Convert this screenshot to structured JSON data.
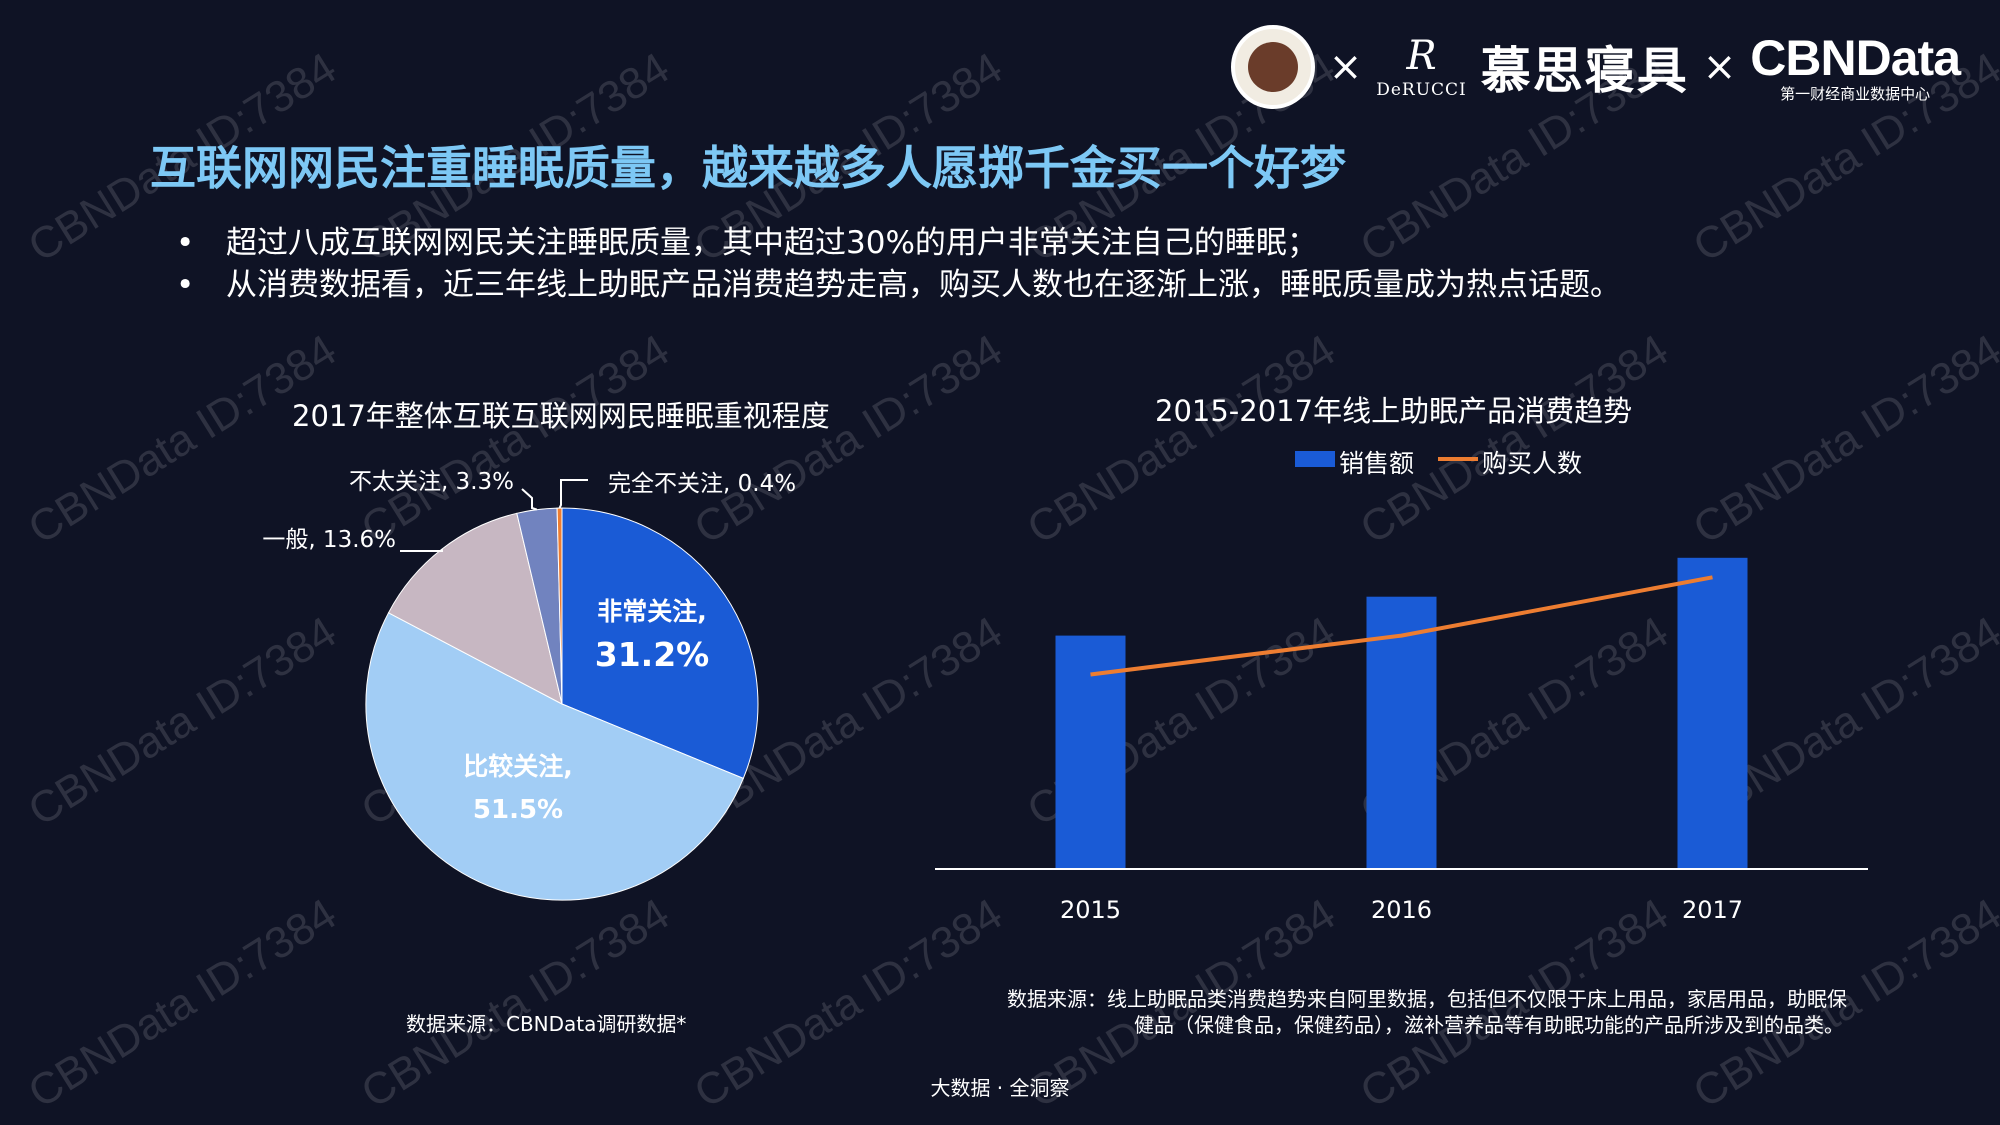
{
  "watermark_text": "CBNData ID:7384",
  "logos": {
    "separator": "×",
    "derucci_mark": "R",
    "derucci_name": "DeRUCCI",
    "brand_cn": "慕思寝具",
    "cbndata": "CBNData",
    "cbndata_sub": "第一财经商业数据中心"
  },
  "headline": "互联网网民注重睡眠质量，越来越多人愿掷千金买一个好梦",
  "bullets": [
    "超过八成互联网网民关注睡眠质量，其中超过30%的用户非常关注自己的睡眠；",
    "从消费数据看，近三年线上助眠产品消费趋势走高，购买人数也在逐渐上涨，睡眠质量成为热点话题。"
  ],
  "bullet_symbol": "•",
  "chart_data": [
    {
      "type": "pie",
      "title": "2017年整体互联互联网网民睡眠重视程度",
      "slices": [
        {
          "label": "非常关注",
          "value": 31.2,
          "display": "31.2%",
          "color": "#1a5bd6"
        },
        {
          "label": "比较关注",
          "value": 51.5,
          "display": "51.5%",
          "color": "#a2cdf5"
        },
        {
          "label": "一般",
          "value": 13.6,
          "display": "13.6%",
          "color": "#c7b7c2"
        },
        {
          "label": "不太关注",
          "value": 3.3,
          "display": "3.3%",
          "color": "#7183bf"
        },
        {
          "label": "完全不关注",
          "value": 0.4,
          "display": "0.4%",
          "color": "#ed7d31"
        }
      ]
    },
    {
      "type": "bar",
      "title": "2015-2017年线上助眠产品消费趋势",
      "categories": [
        "2015",
        "2016",
        "2017"
      ],
      "legend": "top",
      "series": [
        {
          "name": "销售额",
          "type": "bar",
          "color": "#1a5bd6",
          "values": [
            0.6,
            0.7,
            0.8
          ]
        },
        {
          "name": "购买人数",
          "type": "line",
          "color": "#ed7d31",
          "values": [
            0.5,
            0.6,
            0.75
          ]
        }
      ],
      "ylim": [
        0,
        1
      ]
    }
  ],
  "sources": {
    "left": "数据来源：CBNData调研数据*",
    "right_line1": "数据来源：线上助眠品类消费趋势来自阿里数据，包括但不仅限于床上用品，家居用品，助眠保",
    "right_line2": "健品（保健食品，保健药品），滋补营养品等有助眠功能的产品所涉及到的品类。"
  },
  "footer": "大数据 · 全洞察"
}
